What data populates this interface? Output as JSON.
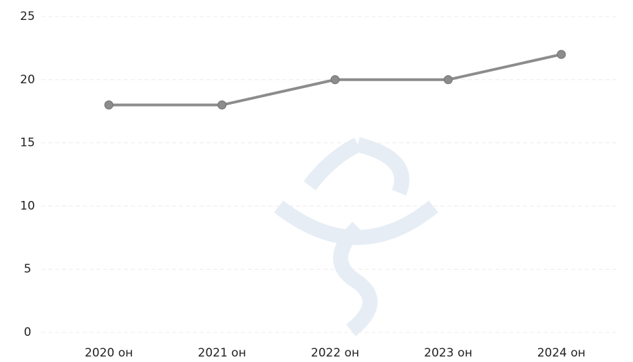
{
  "chart_data": {
    "type": "line",
    "categories": [
      "2020 он",
      "2021 он",
      "2022 он",
      "2023 он",
      "2024 он"
    ],
    "values": [
      18,
      18,
      20,
      20,
      22
    ],
    "color": "#8c8c8c",
    "ylim": [
      0,
      25
    ],
    "yticks": [
      0,
      5,
      10,
      15,
      20,
      25
    ],
    "grid": true
  }
}
